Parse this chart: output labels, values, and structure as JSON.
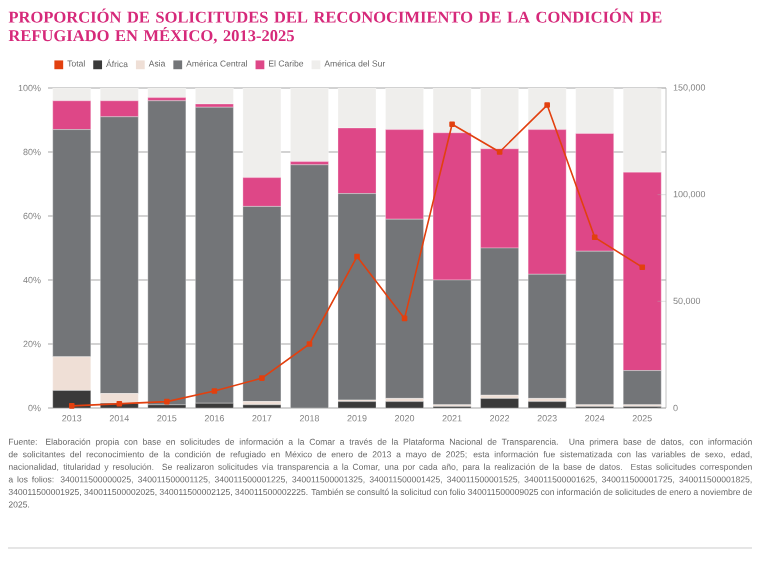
{
  "chart_data": {
    "type": "bar",
    "title": "PROPORCIÓN DE SOLICITUDES DEL RECONOCIMIENTO DE LA CONDICIÓN DE REFUGIADO EN MÉXICO, 2013-2025",
    "categories": [
      "2013",
      "2014",
      "2015",
      "2016",
      "2017",
      "2018",
      "2019",
      "2020",
      "2021",
      "2022",
      "2023",
      "2024",
      "2025"
    ],
    "stacked": true,
    "series": [
      {
        "name": "Total",
        "type": "line",
        "axis": "y2",
        "color": "#e2400f",
        "values": [
          1000,
          2000,
          3000,
          8000,
          14000,
          30000,
          71000,
          42000,
          133000,
          120000,
          142000,
          80000,
          66000
        ]
      },
      {
        "name": "África",
        "color": "#3a3a3a",
        "values": [
          5.5,
          1.5,
          1,
          1.5,
          1,
          0,
          2,
          2,
          0.5,
          3,
          2,
          0.5,
          0.5
        ]
      },
      {
        "name": "Asia",
        "color": "#efdfd6",
        "values": [
          10.5,
          3,
          0,
          0,
          1,
          0,
          0.5,
          1,
          0.5,
          1,
          1,
          0.5,
          0.5
        ]
      },
      {
        "name": "América Central",
        "color": "#737578",
        "values": [
          71,
          86.5,
          95,
          92.5,
          61,
          76,
          64.5,
          56,
          39,
          46,
          38.8,
          48,
          10.7
        ]
      },
      {
        "name": "El Caribe",
        "color": "#de4787",
        "values": [
          9,
          5,
          1,
          1,
          9,
          1,
          20.5,
          28,
          46,
          31,
          45.2,
          36.8,
          62
        ]
      },
      {
        "name": "América del Sur",
        "color": "#efeeec",
        "values": [
          4,
          4,
          3,
          5,
          28,
          23,
          12.5,
          13,
          14,
          19,
          13,
          14.2,
          26.4
        ]
      }
    ],
    "ylim": [
      0,
      100
    ],
    "yticks": [
      {
        "value": 0,
        "label": "0%"
      },
      {
        "value": 20,
        "label": "20%"
      },
      {
        "value": 40,
        "label": "40%"
      },
      {
        "value": 60,
        "label": "60%"
      },
      {
        "value": 80,
        "label": "80%"
      },
      {
        "value": 100,
        "label": "100%"
      }
    ],
    "y2lim": [
      0,
      150000
    ],
    "y2ticks": [
      {
        "value": 0,
        "label": "0"
      },
      {
        "value": 50000,
        "label": "50,000"
      },
      {
        "value": 100000,
        "label": "100,000"
      },
      {
        "value": 150000,
        "label": "150,000"
      }
    ],
    "grid": "y",
    "legend": "top left",
    "marker": "square",
    "annotations": [
      "Fuente: Elaboración propia con base en solicitudes de información a la Comar a través de la Plataforma Nacional de Transparencia. Una primera base de datos, con información de solicitantes del reconocimiento de la condición de refugiado en México de enero de 2013 a mayo de 2025; esta información fue sistematizada con las variables de sexo, edad, nacionalidad, titularidad y resolución. Se realizaron solicitudes vía transparencia a la Comar, una por cada año, para la realización de la base de datos. Estas solicitudes corresponden a los folios: 340011500000025, 340011500001125, 340011500001225, 340011500001325, 340011500001425, 340011500001525, 340011500001625, 340011500001725, 340011500001825, 340011500001925, 340011500002025, 340011500002125, 340011500002225. También se consultó la solicitud con folio 340011500009025 con información de solicitudes de enero a noviembre de 2025."
    ]
  }
}
